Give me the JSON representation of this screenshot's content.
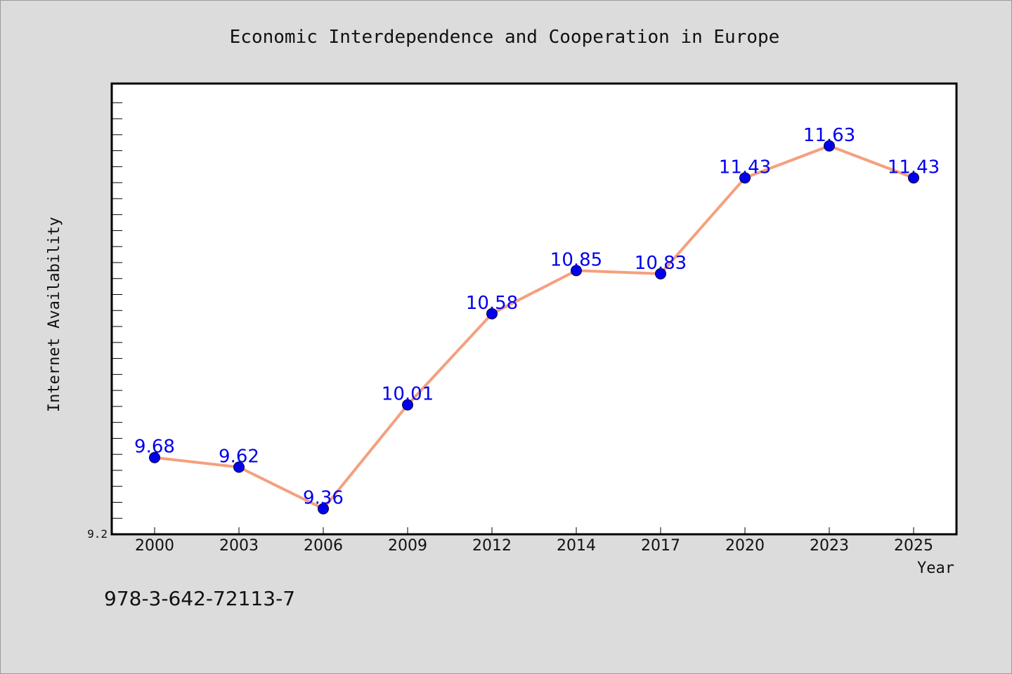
{
  "chart_data": {
    "type": "line",
    "title": "Economic Interdependence and Cooperation in Europe",
    "xlabel": "Year",
    "ylabel": "Internet Availability",
    "categories": [
      "2000",
      "2003",
      "2006",
      "2009",
      "2012",
      "2014",
      "2017",
      "2020",
      "2023",
      "2025"
    ],
    "series": [
      {
        "values": [
          9.68,
          9.62,
          9.36,
          10.01,
          10.58,
          10.85,
          10.83,
          11.43,
          11.63,
          11.43
        ],
        "labels": [
          "9.68",
          "9.62",
          "9.36",
          "10.01",
          "10.58",
          "10.85",
          "10.83",
          "11.43",
          "11.63",
          "11.43"
        ],
        "line_color": "#f4a07e",
        "marker_color": "#0000ee"
      }
    ],
    "ylim": [
      9.2,
      12.02
    ],
    "y_min_label": "9.2",
    "grid": false,
    "legend": "none"
  },
  "annotation": "978-3-642-72113-7",
  "colors": {
    "background": "#dcdcdc",
    "plot_background": "#ffffff",
    "line": "#f4a07e",
    "marker": "#0000ee",
    "data_label": "#0000ee"
  }
}
